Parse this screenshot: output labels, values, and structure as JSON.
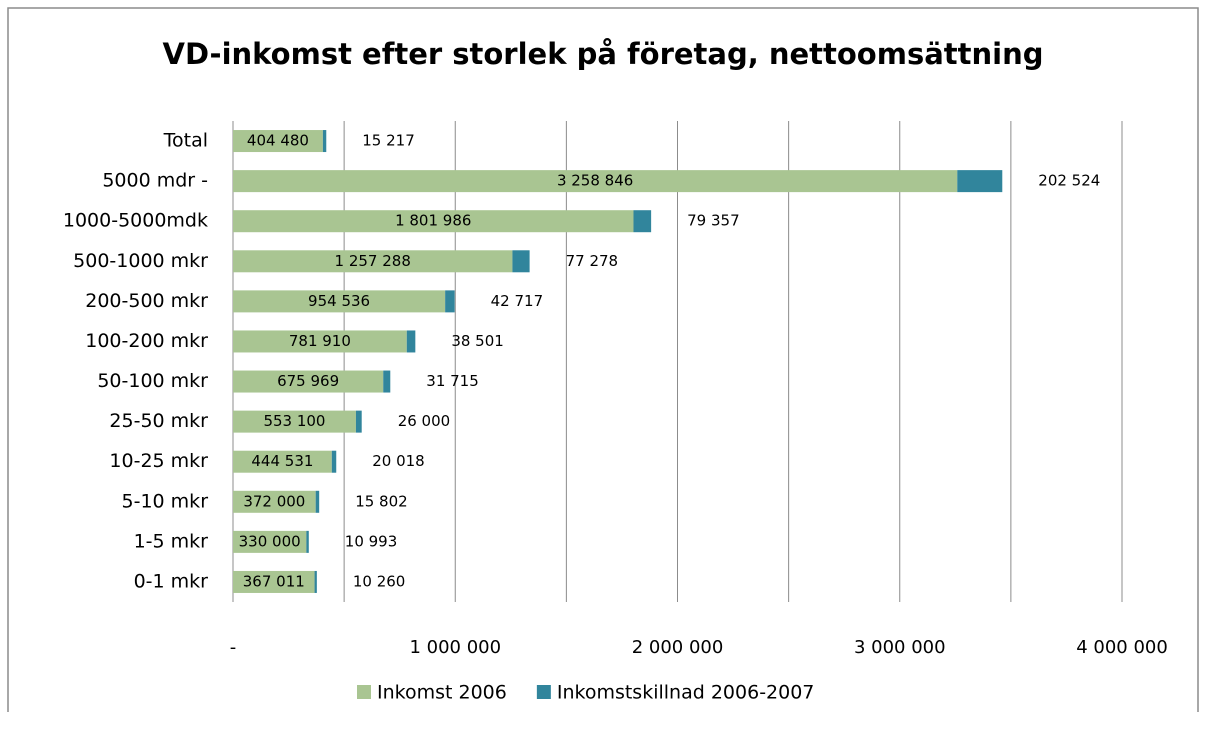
{
  "chart_data": {
    "type": "stacked-barh",
    "title": "VD-inkomst efter storlek på företag, nettoomsättning",
    "categories": [
      "Total",
      "5000 mdr -",
      "1000-5000mdk",
      "500-1000 mkr",
      "200-500 mkr",
      "100-200 mkr",
      "50-100 mkr",
      "25-50 mkr",
      "10-25 mkr",
      "5-10 mkr",
      "1-5 mkr",
      "0-1 mkr"
    ],
    "series": [
      {
        "name": "Inkomst 2006",
        "color": "#a9c592",
        "values": [
          404480,
          3258846,
          1801986,
          1257288,
          954536,
          781910,
          675969,
          553100,
          444531,
          372000,
          330000,
          367011
        ],
        "value_labels": [
          "404 480",
          "3 258 846",
          "1 801 986",
          "1 257 288",
          "954 536",
          "781 910",
          "675 969",
          "553 100",
          "444 531",
          "372 000",
          "330 000",
          "367 011"
        ]
      },
      {
        "name": "Inkomstskillnad 2006-2007",
        "color": "#31859c",
        "values": [
          15217,
          202524,
          79357,
          77278,
          42717,
          38501,
          31715,
          26000,
          20018,
          15802,
          10993,
          10260
        ],
        "value_labels": [
          "15 217",
          "202 524",
          "79 357",
          "77 278",
          "42 717",
          "38 501",
          "31 715",
          "26 000",
          "20 018",
          "15 802",
          "10 993",
          "10 260"
        ]
      }
    ],
    "xlim": [
      0,
      4000000
    ],
    "xticks": [
      {
        "value": 0,
        "label": "-"
      },
      {
        "value": 1000000,
        "label": "1 000 000"
      },
      {
        "value": 2000000,
        "label": "2 000 000"
      },
      {
        "value": 3000000,
        "label": "3 000 000"
      },
      {
        "value": 4000000,
        "label": "4 000 000"
      }
    ],
    "minor_xticks": [
      500000,
      1500000,
      2500000,
      3500000
    ],
    "grid": true,
    "legend": "bottom"
  }
}
